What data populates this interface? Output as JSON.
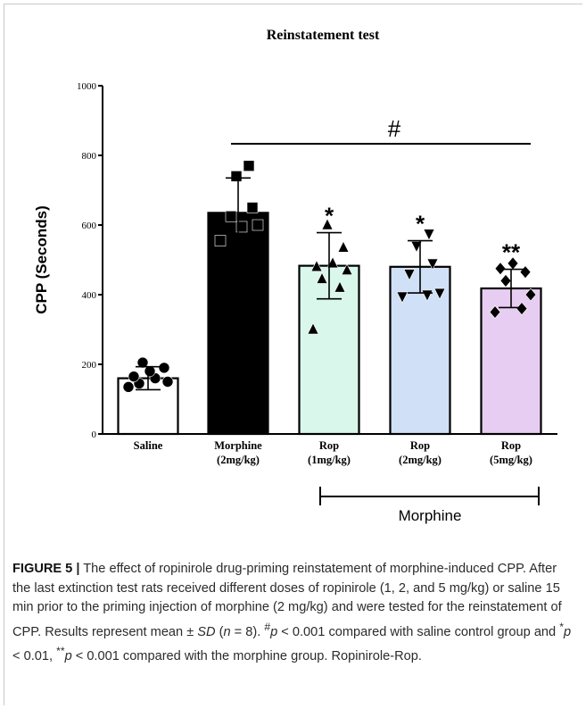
{
  "chart_data": {
    "type": "bar",
    "title": "Reinstatement test",
    "ylabel": "CPP (Seconds)",
    "xlabel": "",
    "ylim": [
      0,
      1000
    ],
    "yticks": [
      0,
      200,
      400,
      600,
      800,
      1000
    ],
    "categories": [
      {
        "line1": "Saline",
        "line2": ""
      },
      {
        "line1": "Morphine",
        "line2": "(2mg/kg)"
      },
      {
        "line1": "Rop",
        "line2": "(1mg/kg)"
      },
      {
        "line1": "Rop",
        "line2": "(2mg/kg)"
      },
      {
        "line1": "Rop",
        "line2": "(5mg/kg)"
      }
    ],
    "values": [
      160,
      635,
      483,
      480,
      418
    ],
    "sd": [
      33,
      100,
      95,
      75,
      55
    ],
    "colors": [
      "#ffffff",
      "#000000",
      "#d9f7ea",
      "#cfe0f7",
      "#e8cdf2"
    ],
    "markers": [
      "circle",
      "square",
      "triangle-up",
      "triangle-down",
      "diamond"
    ],
    "points": [
      [
        135,
        145,
        160,
        150,
        165,
        180,
        190,
        205
      ],
      [
        555,
        595,
        600,
        625,
        650,
        740,
        770
      ],
      [
        300,
        420,
        445,
        470,
        480,
        490,
        535,
        600
      ],
      [
        395,
        400,
        405,
        460,
        490,
        540,
        575
      ],
      [
        350,
        360,
        400,
        440,
        465,
        475,
        490
      ]
    ],
    "significance": [
      "",
      "",
      "*",
      "*",
      "**"
    ],
    "bracket_top": {
      "label": "#",
      "from": 1,
      "to": 4
    },
    "bracket_bottom": {
      "label": "Morphine",
      "from": 2,
      "to": 4
    }
  },
  "caption": {
    "figure_label": "FIGURE 5",
    "separator": "|",
    "text_1": "The effect of ropinirole drug-priming reinstatement of morphine-induced CPP. After the last extinction test rats received different doses of ropinirole (1, 2, and 5 mg/kg) or saline 15 min prior to the priming injection of morphine (2 mg/kg) and were tested for the reinstatement of CPP. Results represent mean ± ",
    "sd_symbol": "SD",
    "text_2": " (",
    "n_symbol": "n",
    "text_3": " = 8). ",
    "hash_sup": "#",
    "p1": "p",
    "text_4": " < 0.001 compared with saline control group and ",
    "star_sup": "*",
    "p2": "p",
    "text_5": " < 0.01, ",
    "double_star_sup": "**",
    "p3": "p",
    "text_6": " < 0.001 compared with the morphine group. Ropinirole-Rop."
  }
}
